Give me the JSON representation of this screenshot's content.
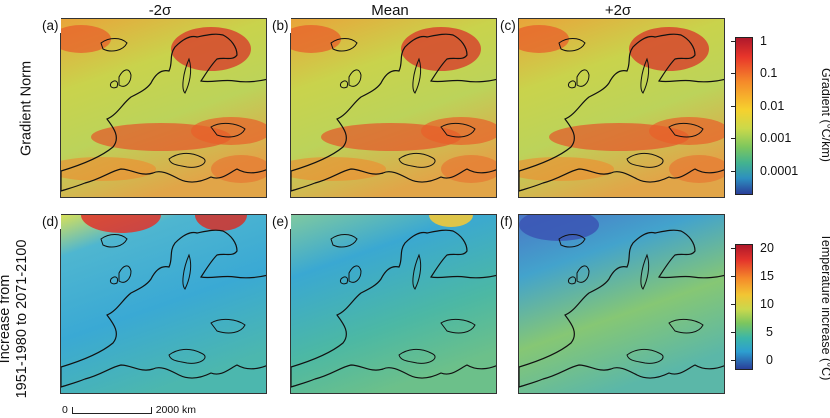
{
  "columns": [
    "-2σ",
    "Mean",
    "+2σ"
  ],
  "rows": [
    {
      "label_lines": [
        "Gradient Norm"
      ]
    },
    {
      "label_lines": [
        "Increase from",
        "1951-1980 to 2071-2100"
      ]
    }
  ],
  "panels": [
    "(a)",
    "(b)",
    "(c)",
    "(d)",
    "(e)",
    "(f)"
  ],
  "colorbars": {
    "gradient": {
      "title": "Gradient (°C/km)",
      "ticks": [
        "1",
        "0.1",
        "0.01",
        "0.001",
        "0.0001"
      ],
      "scale": "log",
      "colors": [
        "#b0182b",
        "#f58a2a",
        "#f6d12e",
        "#7cc65e",
        "#2d8fc0",
        "#2a3f99"
      ]
    },
    "temperature": {
      "title": "Temperature increase (°C)",
      "ticks": [
        "20",
        "15",
        "10",
        "5",
        "0"
      ],
      "colors": [
        "#b0182b",
        "#f58a2a",
        "#c9d84d",
        "#3bb6a8",
        "#2a3f99"
      ]
    }
  },
  "scalebar": {
    "start": "0",
    "end": "2000 km"
  }
}
